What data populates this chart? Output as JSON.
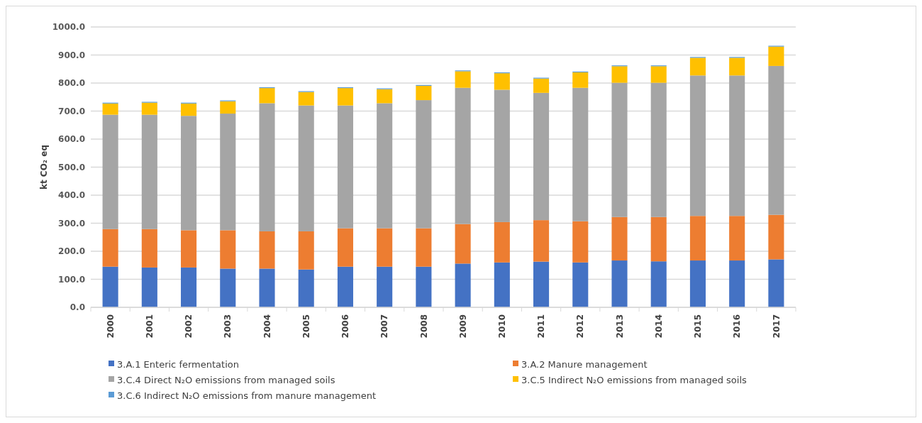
{
  "chart_data": {
    "type": "bar",
    "stacked": true,
    "ylabel": "kt CO₂ eq",
    "categories": [
      "2000",
      "2001",
      "2002",
      "2003",
      "2004",
      "2005",
      "2006",
      "2007",
      "2008",
      "2009",
      "2010",
      "2011",
      "2012",
      "2013",
      "2014",
      "2015",
      "2016",
      "2017"
    ],
    "series": [
      {
        "name": "3.A.1 Enteric fermentation",
        "color": "#4472c4",
        "values": [
          145,
          142,
          142,
          138,
          138,
          135,
          145,
          145,
          145,
          156,
          160,
          163,
          160,
          167,
          164,
          167,
          167,
          171
        ]
      },
      {
        "name": "3.A.2  Manure management",
        "color": "#ed7d31",
        "values": [
          134,
          137,
          133,
          137,
          133,
          136,
          137,
          137,
          137,
          141,
          144,
          148,
          147,
          155,
          158,
          159,
          159,
          159
        ]
      },
      {
        "name": "3.C.4  Direct N₂O emissions from managed soils",
        "color": "#a5a5a5",
        "values": [
          408,
          408,
          408,
          416,
          457,
          449,
          438,
          446,
          457,
          486,
          472,
          454,
          476,
          479,
          479,
          501,
          501,
          531
        ]
      },
      {
        "name": "3.C.5 Indirect N₂O emissions from managed soils",
        "color": "#ffc000",
        "values": [
          40,
          43,
          44,
          44,
          54,
          48,
          62,
          50,
          51,
          59,
          59,
          51,
          55,
          59,
          59,
          63,
          63,
          69
        ]
      },
      {
        "name": "3.C.6 Indirect N₂O emissions from manure management",
        "color": "#5b9bd5",
        "values": [
          3,
          3,
          3,
          3,
          3,
          3,
          3,
          3,
          3,
          3,
          3,
          3,
          3,
          3,
          3,
          3,
          3,
          3
        ]
      }
    ],
    "ylim": [
      0,
      1000
    ],
    "yticks": [
      {
        "value": 0,
        "label": "0.0"
      },
      {
        "value": 100,
        "label": "100.0"
      },
      {
        "value": 200,
        "label": "200.0"
      },
      {
        "value": 300,
        "label": "300.0"
      },
      {
        "value": 400,
        "label": "400.0"
      },
      {
        "value": 500,
        "label": "500.0"
      },
      {
        "value": 600,
        "label": "600.0"
      },
      {
        "value": 700,
        "label": "700.0"
      },
      {
        "value": 800,
        "label": "800.0"
      },
      {
        "value": 900,
        "label": "900.0"
      },
      {
        "value": 1000,
        "label": "1000.0"
      }
    ],
    "grid": "y",
    "legend": "bottom"
  }
}
